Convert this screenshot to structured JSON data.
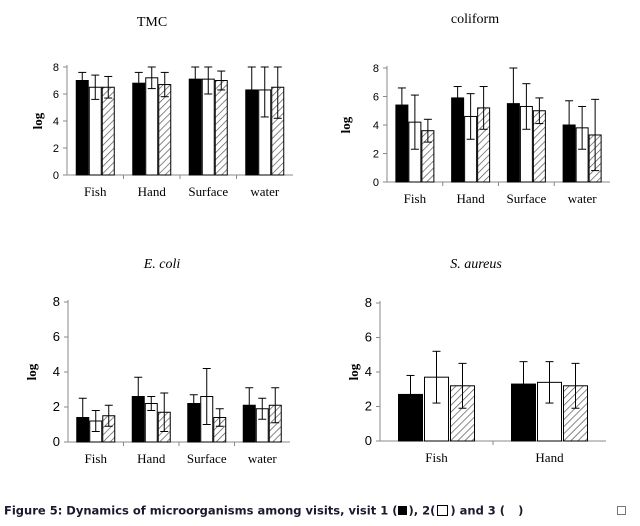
{
  "colors": {
    "bar1": "#000000",
    "bar2": "#ffffff",
    "bar3_hatch": "#555555",
    "axis": "#888888",
    "text": "#000000"
  },
  "legend_symbols": {
    "visit1": "black-square",
    "visit2": "white-square",
    "visit3": "blank"
  },
  "caption": {
    "part1": "Figure 5: Dynamics of microorganisms among visits, visit 1 (",
    "part2": "), 2(",
    "part3": ") and 3 (",
    "part4": ")"
  },
  "chart_data": [
    {
      "type": "bar",
      "title": "TMC",
      "title_style": "normal",
      "ylabel": "log",
      "ylim": [
        0,
        8
      ],
      "yticks": [
        "0",
        "2",
        "4",
        "6",
        "8"
      ],
      "categories": [
        "Fish",
        "Hand",
        "Surface",
        "water"
      ],
      "series": [
        {
          "values": [
            7.0,
            6.8,
            7.1,
            6.3
          ],
          "errors": [
            0.6,
            0.8,
            1.5,
            2.4
          ],
          "fill": "black"
        },
        {
          "values": [
            6.5,
            7.2,
            7.1,
            6.3
          ],
          "errors": [
            0.9,
            0.8,
            1.1,
            2.0
          ],
          "fill": "white"
        },
        {
          "values": [
            6.5,
            6.7,
            7.0,
            6.5
          ],
          "errors": [
            0.8,
            0.9,
            0.7,
            2.3
          ],
          "fill": "hatch"
        }
      ],
      "grid": false
    },
    {
      "type": "bar",
      "title": "coliform",
      "title_style": "normal",
      "ylabel": "log",
      "ylim": [
        0,
        8
      ],
      "yticks": [
        "0",
        "2",
        "4",
        "6",
        "8"
      ],
      "categories": [
        "Fish",
        "Hand",
        "Surface",
        "water"
      ],
      "series": [
        {
          "values": [
            5.4,
            5.9,
            5.5,
            4.0
          ],
          "errors": [
            1.2,
            0.8,
            2.5,
            1.7
          ],
          "fill": "black"
        },
        {
          "values": [
            4.2,
            4.6,
            5.3,
            3.8
          ],
          "errors": [
            1.9,
            1.6,
            1.6,
            1.5
          ],
          "fill": "white"
        },
        {
          "values": [
            3.6,
            5.2,
            5.0,
            3.3
          ],
          "errors": [
            0.8,
            1.5,
            0.9,
            2.5
          ],
          "fill": "hatch"
        }
      ],
      "grid": false
    },
    {
      "type": "bar",
      "title": "E. coli",
      "title_style": "italic",
      "ylabel": "log",
      "ylim": [
        0,
        8
      ],
      "yticks": [
        "0",
        "2",
        "4",
        "6",
        "8"
      ],
      "categories": [
        "Fish",
        "Hand",
        "Surface",
        "water"
      ],
      "series": [
        {
          "values": [
            1.4,
            2.6,
            2.2,
            2.1
          ],
          "errors": [
            1.1,
            1.1,
            0.5,
            1.0
          ],
          "fill": "black"
        },
        {
          "values": [
            1.2,
            2.2,
            2.6,
            1.9
          ],
          "errors": [
            0.6,
            0.4,
            1.6,
            0.6
          ],
          "fill": "white"
        },
        {
          "values": [
            1.5,
            1.7,
            1.4,
            2.1
          ],
          "errors": [
            0.6,
            1.1,
            0.5,
            1.0
          ],
          "fill": "hatch"
        }
      ],
      "grid": false
    },
    {
      "type": "bar",
      "title": "S. aureus",
      "title_style": "italic",
      "ylabel": "log",
      "ylim": [
        0,
        8
      ],
      "yticks": [
        "0",
        "2",
        "4",
        "6",
        "8"
      ],
      "categories": [
        "Fish",
        "Hand"
      ],
      "series": [
        {
          "values": [
            2.7,
            3.3
          ],
          "errors": [
            1.1,
            1.3
          ],
          "fill": "black"
        },
        {
          "values": [
            3.7,
            3.4
          ],
          "errors": [
            1.5,
            1.2
          ],
          "fill": "white"
        },
        {
          "values": [
            3.2,
            3.2
          ],
          "errors": [
            1.3,
            1.3
          ],
          "fill": "hatch"
        }
      ],
      "grid": false
    }
  ]
}
